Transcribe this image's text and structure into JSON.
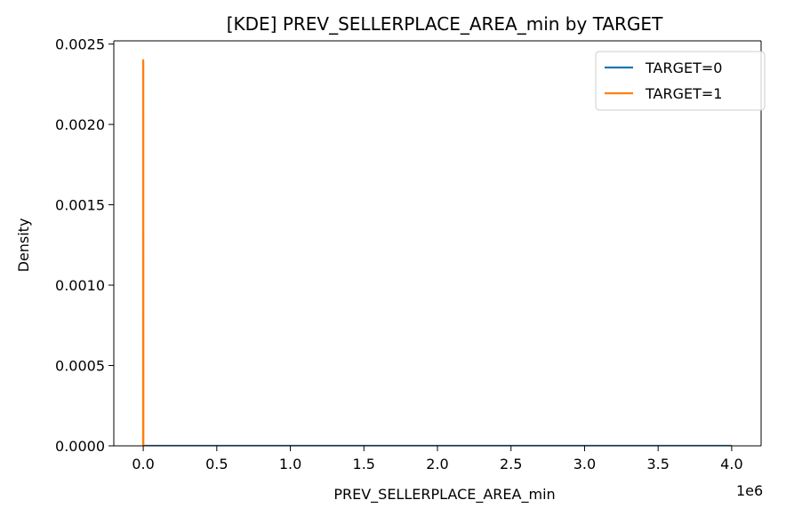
{
  "chart_data": {
    "type": "line",
    "title": "[KDE] PREV_SELLERPLACE_AREA_min by TARGET",
    "xlabel": "PREV_SELLERPLACE_AREA_min",
    "ylabel": "Density",
    "x_offset_label": "1e6",
    "xlim": [
      -0.2,
      4.2
    ],
    "ylim": [
      0,
      0.00252
    ],
    "x_ticks": [
      0,
      0.5,
      1.0,
      1.5,
      2.0,
      2.5,
      3.0,
      3.5,
      4.0
    ],
    "x_tick_labels": [
      "0.0",
      "0.5",
      "1.0",
      "1.5",
      "2.0",
      "2.5",
      "3.0",
      "3.5",
      "4.0"
    ],
    "y_ticks": [
      0,
      0.0005,
      0.001,
      0.0015,
      0.002,
      0.0025
    ],
    "y_tick_labels": [
      "0.0000",
      "0.0005",
      "0.0010",
      "0.0015",
      "0.0020",
      "0.0025"
    ],
    "legend_position": "top-right",
    "grid": false,
    "series": [
      {
        "name": "TARGET=0",
        "color": "#1f77b4",
        "x": [
          -0.001,
          0,
          0.001,
          0.002,
          0.5,
          1.0,
          1.5,
          2.0,
          2.5,
          3.0,
          3.5,
          4.0
        ],
        "y": [
          0,
          5e-07,
          5e-07,
          0,
          0,
          0,
          0,
          0,
          0,
          0,
          0,
          0
        ]
      },
      {
        "name": "TARGET=1",
        "color": "#ff7f0e",
        "x": [
          -0.001,
          -0.0005,
          0,
          0.0005,
          0.001
        ],
        "y": [
          0,
          0.00238,
          0.0024,
          0.00238,
          0
        ]
      }
    ]
  }
}
